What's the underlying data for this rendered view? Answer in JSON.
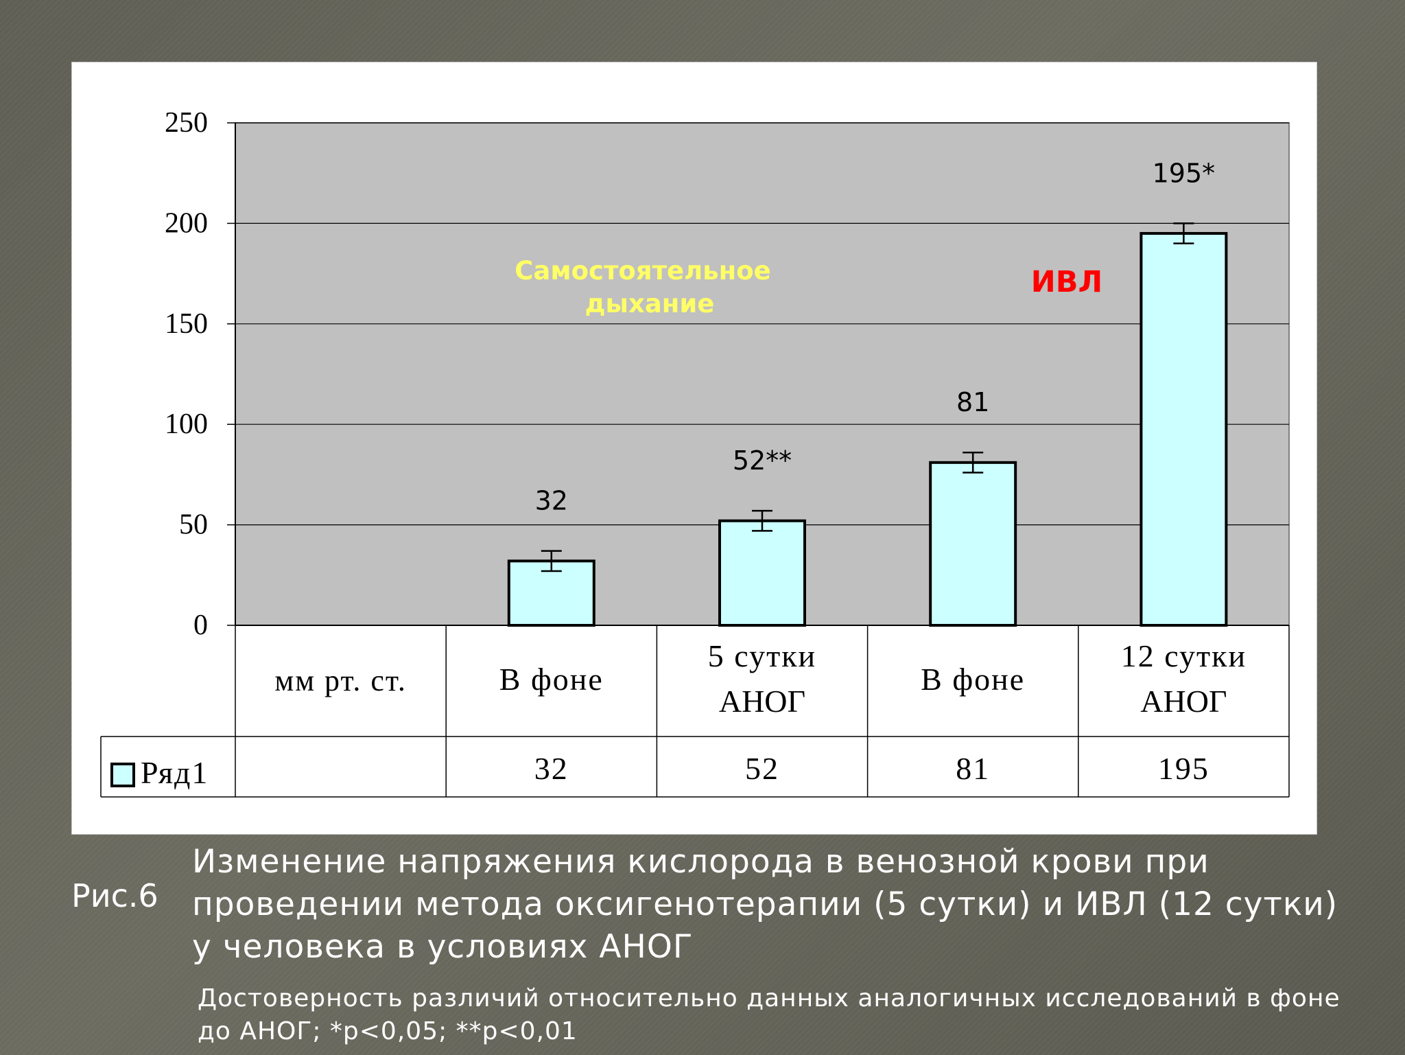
{
  "chart_data": {
    "type": "bar",
    "categories": [
      "В фоне",
      "5 сутки АНОГ",
      "В фоне",
      "12 сутки АНОГ"
    ],
    "category_lines": [
      [
        "В фоне"
      ],
      [
        "5 сутки",
        "АНОГ"
      ],
      [
        "В фоне"
      ],
      [
        "12 сутки",
        "АНОГ"
      ]
    ],
    "series": [
      {
        "name": "Ряд1",
        "values": [
          32,
          52,
          81,
          195
        ],
        "errors": [
          5,
          5,
          5,
          5
        ]
      }
    ],
    "data_labels": [
      "32",
      "52**",
      "81",
      "195*"
    ],
    "yticks": [
      0,
      50,
      100,
      150,
      200,
      250
    ],
    "ylim": [
      0,
      250
    ],
    "unit_label": "мм рт. ст.",
    "table_values": [
      "32",
      "52",
      "81",
      "195"
    ],
    "annotations": {
      "spontaneous": [
        "Самостоятельное",
        "дыхание"
      ],
      "ventilation": "ИВЛ"
    },
    "grid": true,
    "legend": "table-left",
    "colors": {
      "plot_bg": "#c0c0c0",
      "bar_fill": "#ccffff",
      "bar_stroke": "#000000",
      "spontaneous_text": "#ffff66",
      "ventilation_text": "#ff0000"
    }
  },
  "caption": {
    "fig_label": "Рис.6",
    "title_lines": [
      "Изменение напряжения кислорода в венозной крови при",
      "проведении метода оксигенотерапии (5 сутки) и ИВЛ (12 сутки)",
      "у человека в условиях АНОГ"
    ],
    "note_lines": [
      "Достоверность различий относительно данных аналогичных исследований в фоне",
      "до АНОГ; *p<0,05; **p<0,01"
    ]
  }
}
